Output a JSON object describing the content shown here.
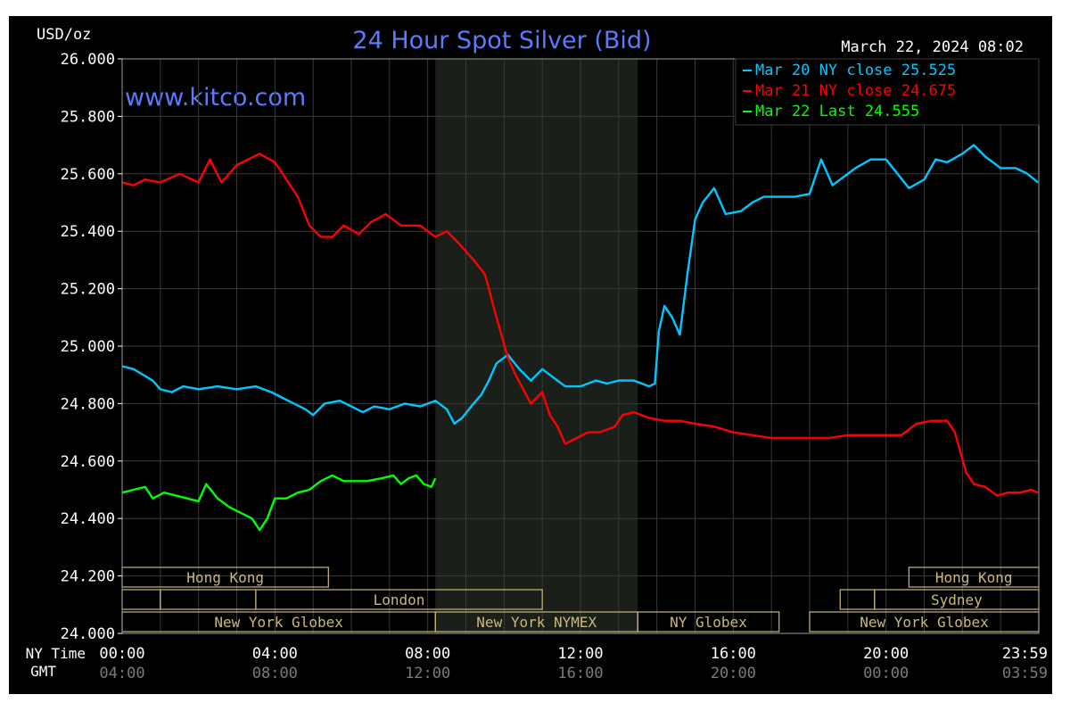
{
  "chart_data": {
    "type": "line",
    "title": "24 Hour Spot Silver (Bid)",
    "unit_label": "USD/oz",
    "timestamp": "March 22, 2024 08:02",
    "watermark": "www.kitco.com",
    "ylim": [
      24000,
      26000
    ],
    "y_ticks": [
      "26.000",
      "25.800",
      "25.600",
      "25.400",
      "25.200",
      "25.000",
      "24.800",
      "24.600",
      "24.400",
      "24.200",
      "24.000"
    ],
    "x_row_labels": [
      "NY Time",
      "GMT"
    ],
    "x_ticks_ny": [
      "00:00",
      "04:00",
      "08:00",
      "12:00",
      "16:00",
      "20:00",
      "23:59"
    ],
    "x_ticks_gmt": [
      "04:00",
      "08:00",
      "12:00",
      "16:00",
      "20:00",
      "00:00",
      "03:59"
    ],
    "legend_position": "top-right",
    "series": [
      {
        "name": "Mar 20 NY close 25.525",
        "color": "#00c8ff",
        "points": [
          [
            0,
            24930
          ],
          [
            0.3,
            24920
          ],
          [
            0.8,
            24880
          ],
          [
            1.0,
            24850
          ],
          [
            1.3,
            24840
          ],
          [
            1.6,
            24860
          ],
          [
            2.0,
            24850
          ],
          [
            2.5,
            24860
          ],
          [
            3.0,
            24850
          ],
          [
            3.5,
            24860
          ],
          [
            3.9,
            24840
          ],
          [
            4.2,
            24820
          ],
          [
            4.5,
            24800
          ],
          [
            4.8,
            24780
          ],
          [
            5.0,
            24760
          ],
          [
            5.3,
            24800
          ],
          [
            5.7,
            24810
          ],
          [
            6.0,
            24790
          ],
          [
            6.3,
            24770
          ],
          [
            6.6,
            24790
          ],
          [
            7.0,
            24780
          ],
          [
            7.4,
            24800
          ],
          [
            7.8,
            24790
          ],
          [
            8.2,
            24810
          ],
          [
            8.5,
            24780
          ],
          [
            8.7,
            24730
          ],
          [
            8.9,
            24750
          ],
          [
            9.2,
            24800
          ],
          [
            9.4,
            24830
          ],
          [
            9.6,
            24880
          ],
          [
            9.8,
            24940
          ],
          [
            10.1,
            24970
          ],
          [
            10.4,
            24920
          ],
          [
            10.7,
            24880
          ],
          [
            11.0,
            24920
          ],
          [
            11.3,
            24890
          ],
          [
            11.6,
            24860
          ],
          [
            12.0,
            24860
          ],
          [
            12.4,
            24880
          ],
          [
            12.7,
            24870
          ],
          [
            13.0,
            24880
          ],
          [
            13.4,
            24880
          ],
          [
            13.8,
            24860
          ],
          [
            13.95,
            24870
          ],
          [
            14.05,
            25050
          ],
          [
            14.2,
            25140
          ],
          [
            14.4,
            25100
          ],
          [
            14.6,
            25040
          ],
          [
            14.8,
            25250
          ],
          [
            15.0,
            25440
          ],
          [
            15.2,
            25500
          ],
          [
            15.5,
            25550
          ],
          [
            15.8,
            25460
          ],
          [
            16.2,
            25470
          ],
          [
            16.5,
            25500
          ],
          [
            16.8,
            25520
          ],
          [
            17.2,
            25520
          ],
          [
            17.6,
            25520
          ],
          [
            18.0,
            25530
          ],
          [
            18.3,
            25650
          ],
          [
            18.6,
            25560
          ],
          [
            18.8,
            25580
          ],
          [
            19.2,
            25620
          ],
          [
            19.6,
            25650
          ],
          [
            20.0,
            25650
          ],
          [
            20.3,
            25600
          ],
          [
            20.6,
            25550
          ],
          [
            21.0,
            25580
          ],
          [
            21.3,
            25650
          ],
          [
            21.6,
            25640
          ],
          [
            22.0,
            25670
          ],
          [
            22.3,
            25700
          ],
          [
            22.6,
            25660
          ],
          [
            23.0,
            25620
          ],
          [
            23.4,
            25620
          ],
          [
            23.7,
            25600
          ],
          [
            23.98,
            25570
          ]
        ]
      },
      {
        "name": "Mar 21 NY close 24.675",
        "color": "#ff0000",
        "points": [
          [
            0,
            25570
          ],
          [
            0.3,
            25560
          ],
          [
            0.6,
            25580
          ],
          [
            1.0,
            25570
          ],
          [
            1.5,
            25600
          ],
          [
            2.0,
            25570
          ],
          [
            2.3,
            25650
          ],
          [
            2.6,
            25570
          ],
          [
            3.0,
            25630
          ],
          [
            3.3,
            25650
          ],
          [
            3.6,
            25670
          ],
          [
            4.0,
            25640
          ],
          [
            4.3,
            25580
          ],
          [
            4.6,
            25520
          ],
          [
            4.9,
            25420
          ],
          [
            5.2,
            25380
          ],
          [
            5.5,
            25380
          ],
          [
            5.8,
            25420
          ],
          [
            6.2,
            25390
          ],
          [
            6.5,
            25430
          ],
          [
            6.9,
            25460
          ],
          [
            7.3,
            25420
          ],
          [
            7.8,
            25420
          ],
          [
            8.2,
            25380
          ],
          [
            8.5,
            25400
          ],
          [
            8.8,
            25360
          ],
          [
            9.2,
            25300
          ],
          [
            9.5,
            25250
          ],
          [
            9.8,
            25100
          ],
          [
            10.1,
            24960
          ],
          [
            10.3,
            24900
          ],
          [
            10.5,
            24850
          ],
          [
            10.7,
            24800
          ],
          [
            11.0,
            24840
          ],
          [
            11.2,
            24760
          ],
          [
            11.4,
            24720
          ],
          [
            11.6,
            24660
          ],
          [
            11.9,
            24680
          ],
          [
            12.2,
            24700
          ],
          [
            12.5,
            24700
          ],
          [
            12.9,
            24720
          ],
          [
            13.1,
            24760
          ],
          [
            13.4,
            24770
          ],
          [
            13.8,
            24750
          ],
          [
            14.2,
            24740
          ],
          [
            14.6,
            24740
          ],
          [
            15.0,
            24730
          ],
          [
            15.5,
            24720
          ],
          [
            16.0,
            24700
          ],
          [
            16.5,
            24690
          ],
          [
            17.0,
            24680
          ],
          [
            17.5,
            24680
          ],
          [
            18.0,
            24680
          ],
          [
            18.5,
            24680
          ],
          [
            19.0,
            24690
          ],
          [
            19.5,
            24690
          ],
          [
            20.0,
            24690
          ],
          [
            20.4,
            24690
          ],
          [
            20.8,
            24730
          ],
          [
            21.2,
            24740
          ],
          [
            21.6,
            24740
          ],
          [
            21.8,
            24700
          ],
          [
            22.1,
            24560
          ],
          [
            22.3,
            24520
          ],
          [
            22.6,
            24510
          ],
          [
            22.9,
            24480
          ],
          [
            23.2,
            24490
          ],
          [
            23.5,
            24490
          ],
          [
            23.8,
            24500
          ],
          [
            23.98,
            24490
          ]
        ]
      },
      {
        "name": "Mar 22 Last 24.555",
        "color": "#00ff00",
        "points": [
          [
            0,
            24490
          ],
          [
            0.3,
            24500
          ],
          [
            0.6,
            24510
          ],
          [
            0.8,
            24470
          ],
          [
            1.1,
            24490
          ],
          [
            1.4,
            24480
          ],
          [
            1.7,
            24470
          ],
          [
            2.0,
            24460
          ],
          [
            2.2,
            24520
          ],
          [
            2.5,
            24470
          ],
          [
            2.8,
            24440
          ],
          [
            3.1,
            24420
          ],
          [
            3.4,
            24400
          ],
          [
            3.6,
            24360
          ],
          [
            3.8,
            24400
          ],
          [
            4.0,
            24470
          ],
          [
            4.3,
            24470
          ],
          [
            4.6,
            24490
          ],
          [
            4.9,
            24500
          ],
          [
            5.2,
            24530
          ],
          [
            5.5,
            24550
          ],
          [
            5.8,
            24530
          ],
          [
            6.1,
            24530
          ],
          [
            6.4,
            24530
          ],
          [
            6.8,
            24540
          ],
          [
            7.1,
            24550
          ],
          [
            7.3,
            24520
          ],
          [
            7.5,
            24540
          ],
          [
            7.7,
            24550
          ],
          [
            7.9,
            24520
          ],
          [
            8.1,
            24510
          ],
          [
            8.2,
            24540
          ]
        ]
      }
    ],
    "sessions": [
      {
        "label": "Hong Kong",
        "row": 0,
        "x0": 0,
        "x1": 5.4
      },
      {
        "label": "",
        "row": 1,
        "x0": 0,
        "x1": 1.0
      },
      {
        "label": "",
        "row": 1,
        "x0": 1.0,
        "x1": 3.5
      },
      {
        "label": "London",
        "row": 1,
        "x0": 3.5,
        "x1": 11.0
      },
      {
        "label": "New York Globex",
        "row": 2,
        "x0": 0,
        "x1": 8.2
      },
      {
        "label": "New York NYMEX",
        "row": 2,
        "x0": 8.2,
        "x1": 13.5
      },
      {
        "label": "NY Globex",
        "row": 2,
        "x0": 13.5,
        "x1": 17.2
      },
      {
        "label": "Hong Kong",
        "row": 0,
        "x0": 20.6,
        "x1": 24.0
      },
      {
        "label": "",
        "row": 1,
        "x0": 18.8,
        "x1": 19.7
      },
      {
        "label": "Sydney",
        "row": 1,
        "x0": 19.7,
        "x1": 24.0
      },
      {
        "label": "New York Globex",
        "row": 2,
        "x0": 18.0,
        "x1": 24.0
      }
    ],
    "shaded_hours": [
      8.2,
      13.5
    ],
    "grid": true
  }
}
